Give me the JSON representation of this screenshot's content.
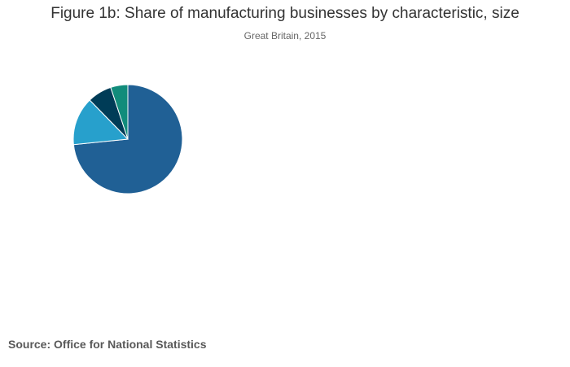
{
  "chart_data": {
    "type": "pie",
    "title": "Figure 1b: Share of manufacturing businesses by characteristic, size",
    "subtitle": "Great Britain, 2015",
    "slices": [
      {
        "value": 73.4,
        "color": "#206095"
      },
      {
        "value": 14.3,
        "color": "#27a0cc"
      },
      {
        "value": 7.2,
        "color": "#003c57"
      },
      {
        "value": 5.1,
        "color": "#118c7b"
      }
    ],
    "legend": "none",
    "grid": false
  },
  "source": "Source: Office for National Statistics"
}
